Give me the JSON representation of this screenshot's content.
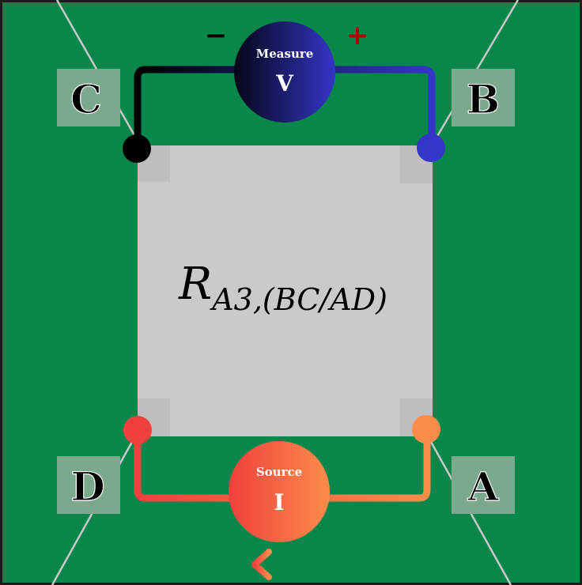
{
  "corners": {
    "A": {
      "label": "A"
    },
    "B": {
      "label": "B"
    },
    "C": {
      "label": "C"
    },
    "D": {
      "label": "D"
    }
  },
  "voltmeter": {
    "title": "Measure",
    "symbol": "V",
    "minus": "−",
    "plus": "+"
  },
  "source": {
    "title": "Source",
    "symbol": "I"
  },
  "sample": {
    "resistance_main": "R",
    "resistance_subscript": "A3,(BC/AD)"
  },
  "colors": {
    "background": "#09874a",
    "sample": "#cbc9ca",
    "label_box": "#7aa98d",
    "black_wire": "#000000",
    "blue_wire": "#3535c8",
    "red_wire": "#f1413e",
    "orange_wire": "#fb8c4a",
    "plus_sign": "#b00000"
  }
}
